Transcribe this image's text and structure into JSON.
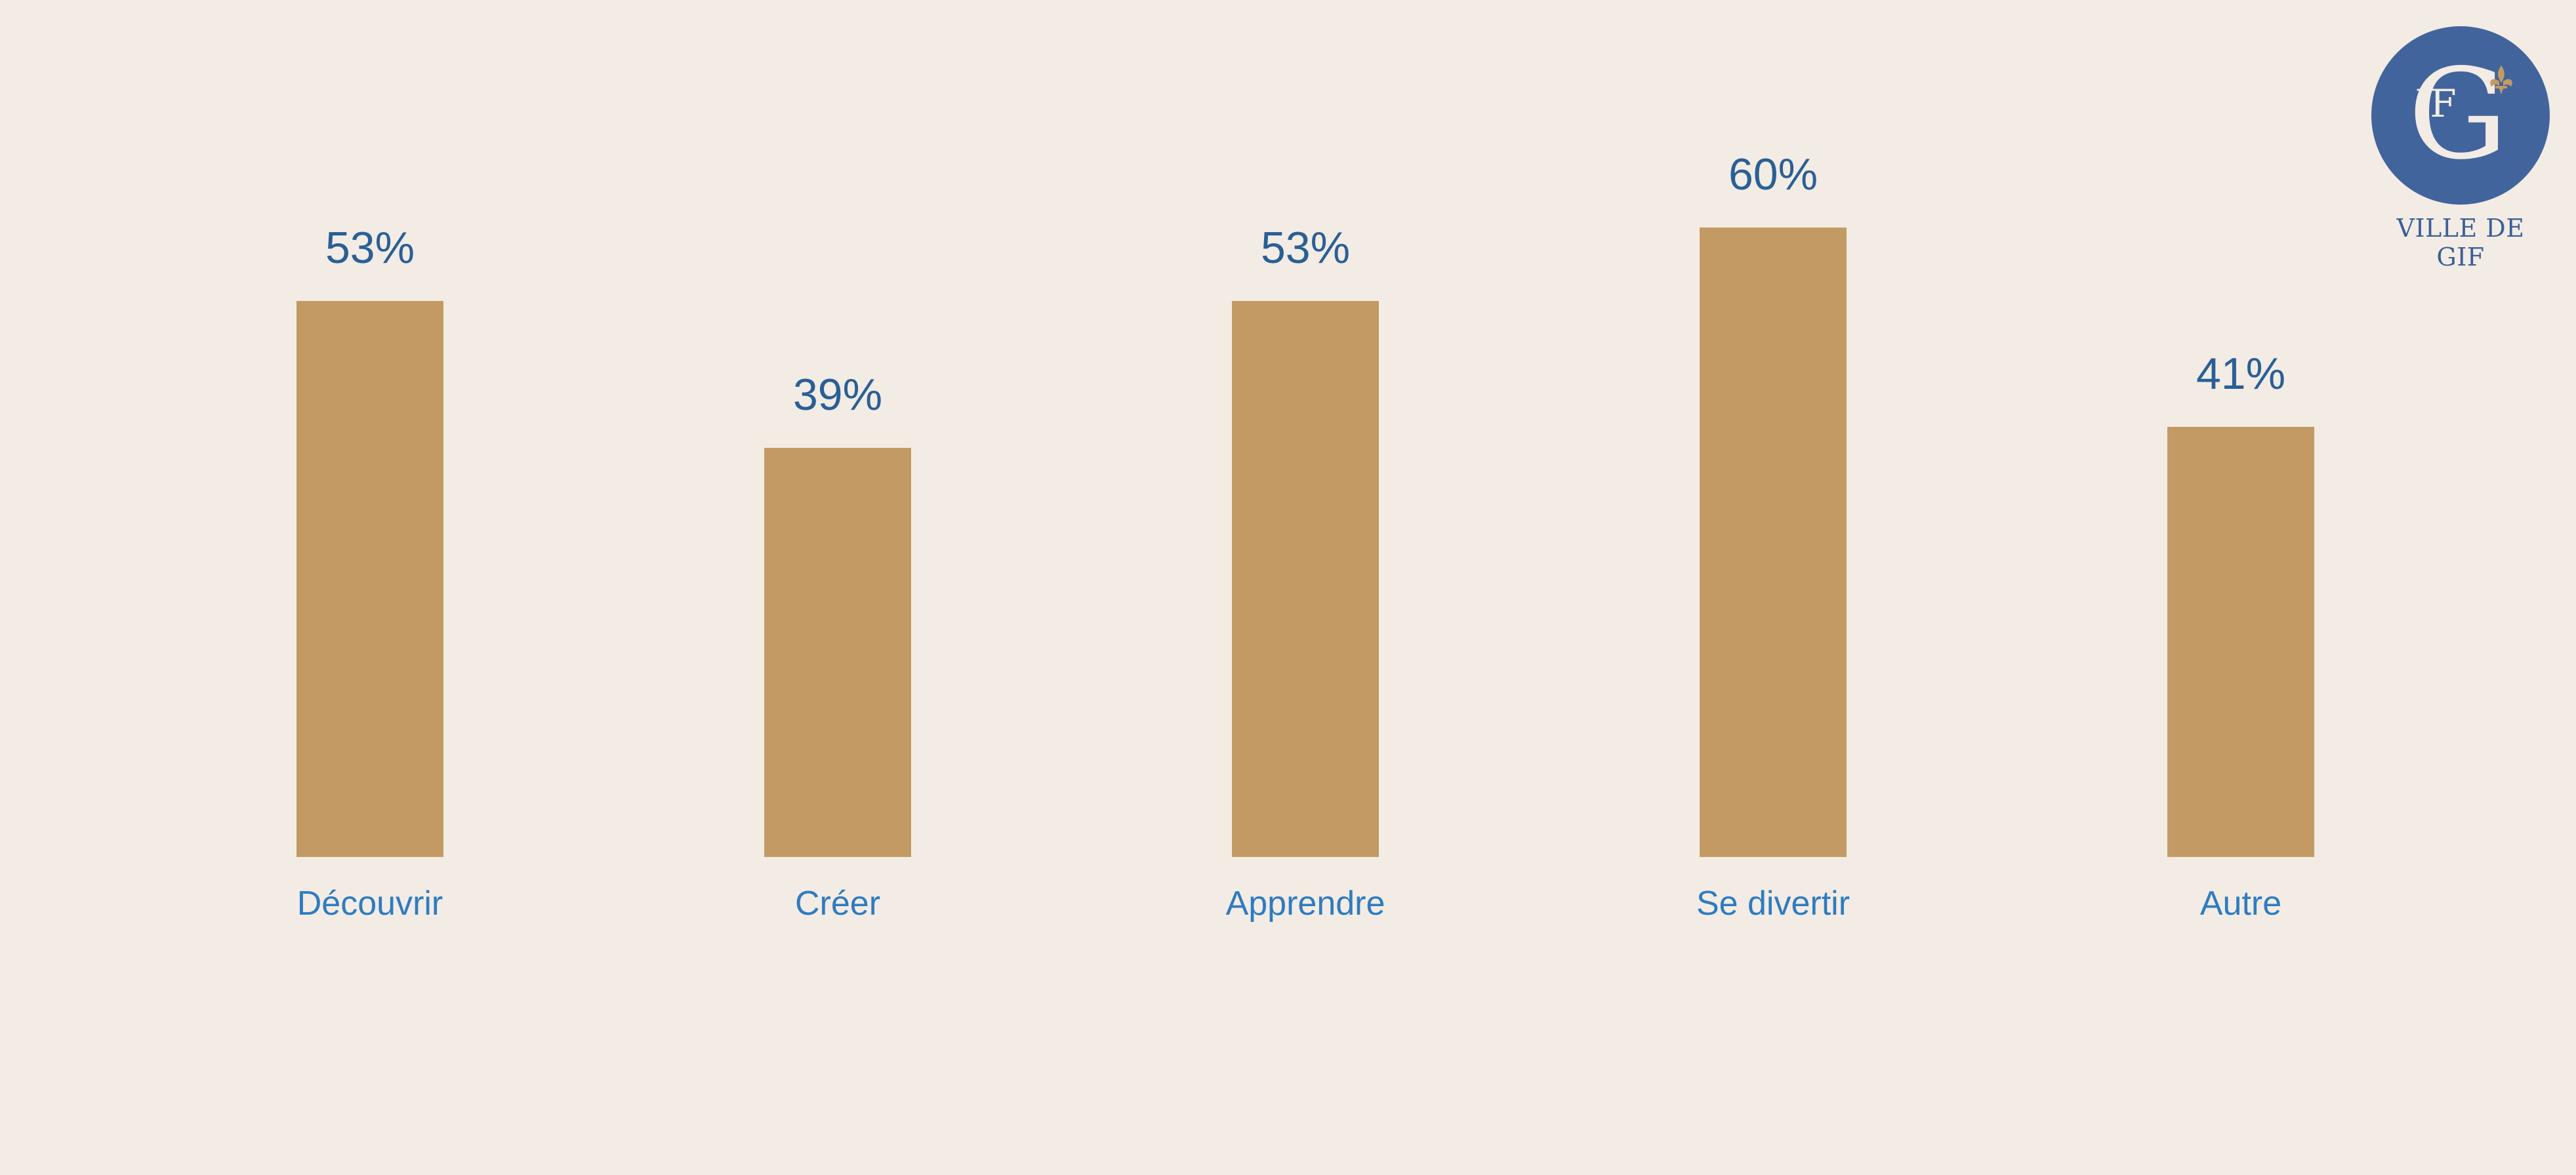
{
  "colors": {
    "background": "#f2ece5",
    "bar": "#c39a63",
    "value_label": "#2a5f95",
    "category_label": "#2f7bbf",
    "logo_circle": "#42649c",
    "logo_letters": "#f2ece5",
    "logo_accent": "#c39a63"
  },
  "logo": {
    "caption": "VILLE DE GIF",
    "monogram": "GIF",
    "icon": "fleur-de-lis-icon"
  },
  "chart_data": {
    "type": "bar",
    "title": "",
    "xlabel": "",
    "ylabel": "",
    "ylim": [
      0,
      100
    ],
    "grid": false,
    "legend": "none",
    "categories": [
      "Découvrir",
      "Créer",
      "Apprendre",
      "Se divertir",
      "Autre"
    ],
    "values": [
      53,
      39,
      53,
      60,
      41
    ],
    "value_labels": [
      "53%",
      "39%",
      "53%",
      "60%",
      "41%"
    ]
  }
}
